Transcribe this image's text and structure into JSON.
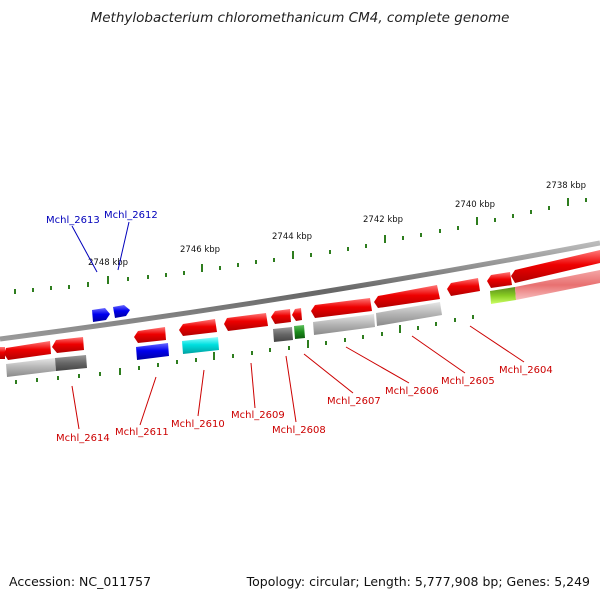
{
  "title": "Methylobacterium chloromethanicum CM4, complete genome",
  "accession_text": "Accession: NC_011757",
  "topology_text": "Topology: circular; Length: 5,777,908 bp; Genes: 5,249",
  "colors": {
    "backbone": "#8a8a8a",
    "tick": "#2e7d1e",
    "gene_red": "#ee0000",
    "gene_blue": "#0000ee",
    "gene_cyan": "#00e0e0",
    "gene_green": "#1a8a1a",
    "gene_lime": "#88dd22",
    "gene_gray": "#aaaaaa",
    "gene_darkgray": "#666666",
    "gene_pink": "#f08080",
    "label_red": "#cc0000",
    "label_blue": "#0000bb"
  },
  "ruler": {
    "labels": [
      "2738 kbp",
      "2740 kbp",
      "2742 kbp",
      "2744 kbp",
      "2746 kbp",
      "2748 kbp"
    ]
  },
  "gene_labels": {
    "mchl_2613": "Mchl_2613",
    "mchl_2612": "Mchl_2612",
    "mchl_2614": "Mchl_2614",
    "mchl_2611": "Mchl_2611",
    "mchl_2610": "Mchl_2610",
    "mchl_2609": "Mchl_2609",
    "mchl_2608": "Mchl_2608",
    "mchl_2607": "Mchl_2607",
    "mchl_2606": "Mchl_2606",
    "mchl_2605": "Mchl_2605",
    "mchl_2604": "Mchl_2604"
  }
}
